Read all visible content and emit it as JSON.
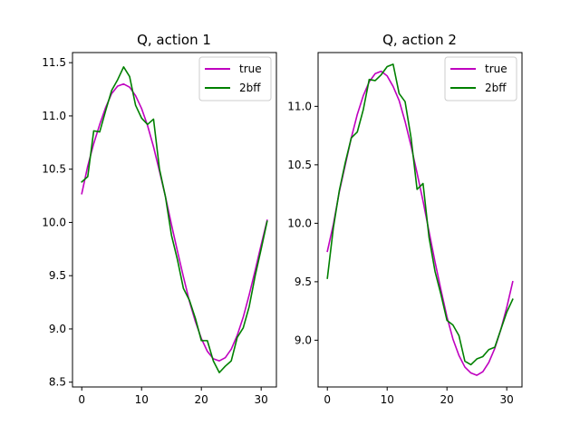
{
  "chart_data": [
    {
      "type": "line",
      "title": "Q, action 1",
      "xlabel": "",
      "ylabel": "",
      "xlim": [
        -1.55,
        32.55
      ],
      "ylim": [
        8.455,
        11.595
      ],
      "xticks": [
        0,
        10,
        20,
        30
      ],
      "xtick_labels": [
        "0",
        "10",
        "20",
        "30"
      ],
      "yticks": [
        8.5,
        9.0,
        9.5,
        10.0,
        10.5,
        11.0,
        11.5
      ],
      "ytick_labels": [
        "8.5",
        "9.0",
        "9.5",
        "10.0",
        "10.5",
        "11.0",
        "11.5"
      ],
      "grid": false,
      "legend_position": "top-right",
      "x": [
        0,
        1,
        2,
        3,
        4,
        5,
        6,
        7,
        8,
        9,
        10,
        11,
        12,
        13,
        14,
        15,
        16,
        17,
        18,
        19,
        20,
        21,
        22,
        23,
        24,
        25,
        26,
        27,
        28,
        29,
        30,
        31
      ],
      "series": [
        {
          "name": "true",
          "color": "#bf00bf",
          "values": [
            10.27,
            10.53,
            10.74,
            10.92,
            11.08,
            11.21,
            11.28,
            11.3,
            11.27,
            11.19,
            11.07,
            10.91,
            10.71,
            10.48,
            10.24,
            9.98,
            9.73,
            9.49,
            9.26,
            9.07,
            8.91,
            8.79,
            8.72,
            8.7,
            8.73,
            8.81,
            8.94,
            9.11,
            9.32,
            9.55,
            9.79,
            10.02
          ]
        },
        {
          "name": "2bff",
          "color": "#008000",
          "values": [
            10.38,
            10.43,
            10.86,
            10.85,
            11.05,
            11.24,
            11.34,
            11.46,
            11.37,
            11.1,
            10.98,
            10.92,
            10.97,
            10.5,
            10.24,
            9.88,
            9.65,
            9.38,
            9.27,
            9.1,
            8.89,
            8.89,
            8.7,
            8.59,
            8.65,
            8.7,
            8.92,
            9.01,
            9.21,
            9.5,
            9.75,
            10.01
          ]
        }
      ]
    },
    {
      "type": "line",
      "title": "Q, action 2",
      "xlabel": "",
      "ylabel": "",
      "xlim": [
        -1.55,
        32.55
      ],
      "ylim": [
        8.6,
        11.46
      ],
      "xticks": [
        0,
        10,
        20,
        30
      ],
      "xtick_labels": [
        "0",
        "10",
        "20",
        "30"
      ],
      "yticks": [
        9.0,
        9.5,
        10.0,
        10.5,
        11.0
      ],
      "ytick_labels": [
        "9.0",
        "9.5",
        "10.0",
        "10.5",
        "11.0"
      ],
      "grid": false,
      "legend_position": "top-right",
      "x": [
        0,
        1,
        2,
        3,
        4,
        5,
        6,
        7,
        8,
        9,
        10,
        11,
        12,
        13,
        14,
        15,
        16,
        17,
        18,
        19,
        20,
        21,
        22,
        23,
        24,
        25,
        26,
        27,
        28,
        29,
        30,
        31
      ],
      "series": [
        {
          "name": "true",
          "color": "#bf00bf",
          "values": [
            9.76,
            9.99,
            10.27,
            10.5,
            10.73,
            10.93,
            11.09,
            11.21,
            11.28,
            11.3,
            11.26,
            11.17,
            11.05,
            10.87,
            10.66,
            10.43,
            10.19,
            9.93,
            9.67,
            9.43,
            9.2,
            9.01,
            8.87,
            8.77,
            8.72,
            8.7,
            8.73,
            8.81,
            8.93,
            9.09,
            9.28,
            9.5
          ]
        },
        {
          "name": "2bff",
          "color": "#008000",
          "values": [
            9.53,
            9.96,
            10.28,
            10.52,
            10.73,
            10.78,
            10.97,
            11.23,
            11.22,
            11.27,
            11.34,
            11.36,
            11.11,
            11.04,
            10.73,
            10.29,
            10.34,
            9.88,
            9.59,
            9.39,
            9.17,
            9.13,
            9.04,
            8.82,
            8.79,
            8.84,
            8.86,
            8.92,
            8.94,
            9.09,
            9.24,
            9.35
          ]
        }
      ]
    }
  ]
}
